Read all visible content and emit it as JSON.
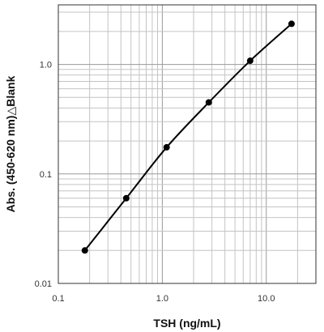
{
  "chart_data": {
    "type": "line",
    "xlabel": "TSH (ng/mL)",
    "ylabel": "Abs. (450-620 nm)",
    "ylabel_symbol": "△",
    "ylabel_suffix": "Blank",
    "x_scale": "log",
    "y_scale": "log",
    "xlim": [
      0.1,
      30
    ],
    "ylim": [
      0.01,
      3.5
    ],
    "x_ticks": [
      0.1,
      1.0,
      10.0
    ],
    "x_tick_labels": [
      "0.1",
      "1.0",
      "10.0"
    ],
    "y_ticks": [
      0.01,
      0.1,
      1.0
    ],
    "y_tick_labels": [
      "0.01",
      "0.1",
      "1.0"
    ],
    "grid": true,
    "legend": "none",
    "series": [
      {
        "x": [
          0.18,
          0.45,
          1.1,
          2.8,
          7.0,
          17.5
        ],
        "y": [
          0.02,
          0.06,
          0.175,
          0.45,
          1.08,
          2.35
        ],
        "color": "#000000",
        "marker": "circle"
      }
    ]
  }
}
